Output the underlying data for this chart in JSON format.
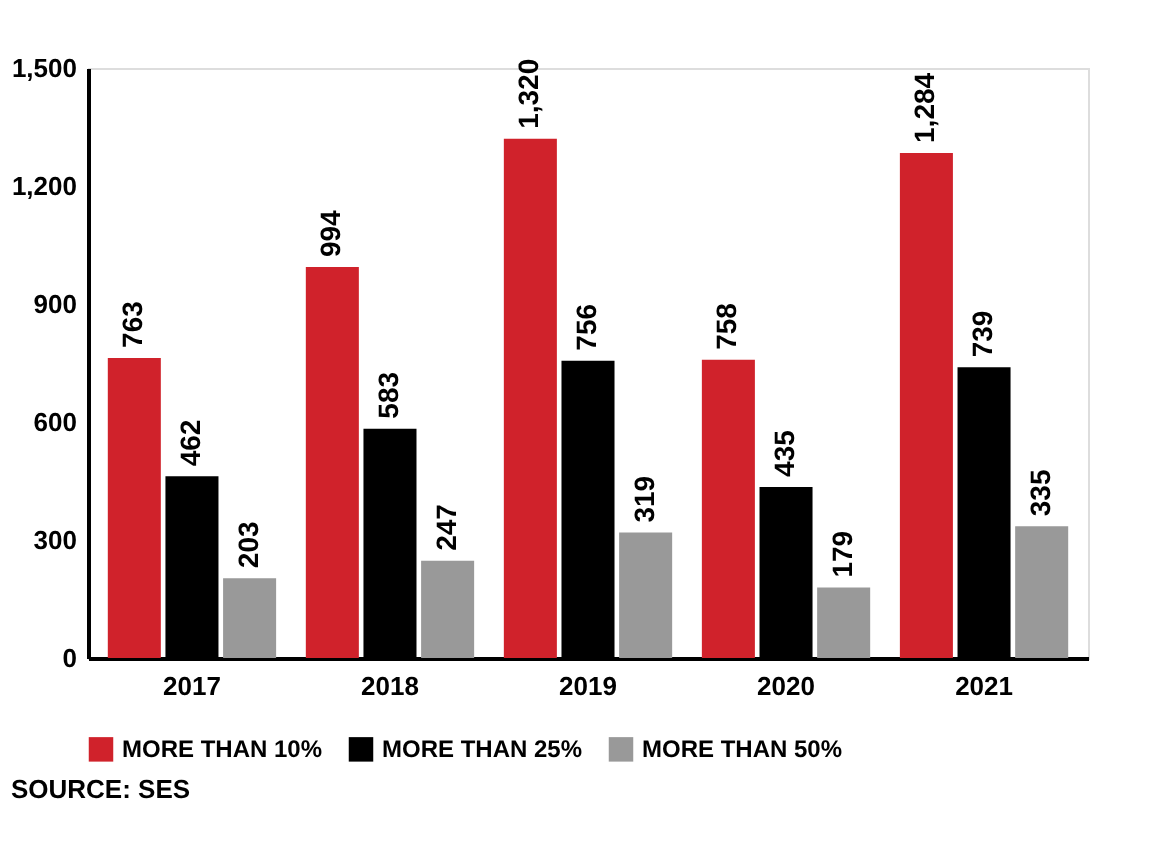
{
  "chart_data": {
    "type": "bar",
    "categories": [
      "2017",
      "2018",
      "2019",
      "2020",
      "2021"
    ],
    "series": [
      {
        "name": "MORE THAN 10%",
        "color": "#d0222b",
        "values": [
          763,
          994,
          1320,
          758,
          1284
        ],
        "value_labels": [
          "763",
          "994",
          "1,320",
          "758",
          "1,284"
        ]
      },
      {
        "name": "MORE THAN 25%",
        "color": "#000000",
        "values": [
          462,
          583,
          756,
          435,
          739
        ],
        "value_labels": [
          "462",
          "583",
          "756",
          "435",
          "739"
        ]
      },
      {
        "name": "MORE THAN 50%",
        "color": "#999999",
        "values": [
          203,
          247,
          319,
          179,
          335
        ],
        "value_labels": [
          "203",
          "247",
          "319",
          "179",
          "335"
        ]
      }
    ],
    "ylim": [
      0,
      1500
    ],
    "yticks": [
      0,
      {
        "value": 300,
        "label": "300"
      },
      {
        "value": 600,
        "label": "600"
      },
      {
        "value": 900,
        "label": "900"
      },
      {
        "value": 1200,
        "label": "1,200"
      },
      {
        "value": 1500,
        "label": "1,500"
      }
    ],
    "grid": false,
    "legend": "bottom",
    "annotations": [
      "SOURCE: SES"
    ]
  }
}
